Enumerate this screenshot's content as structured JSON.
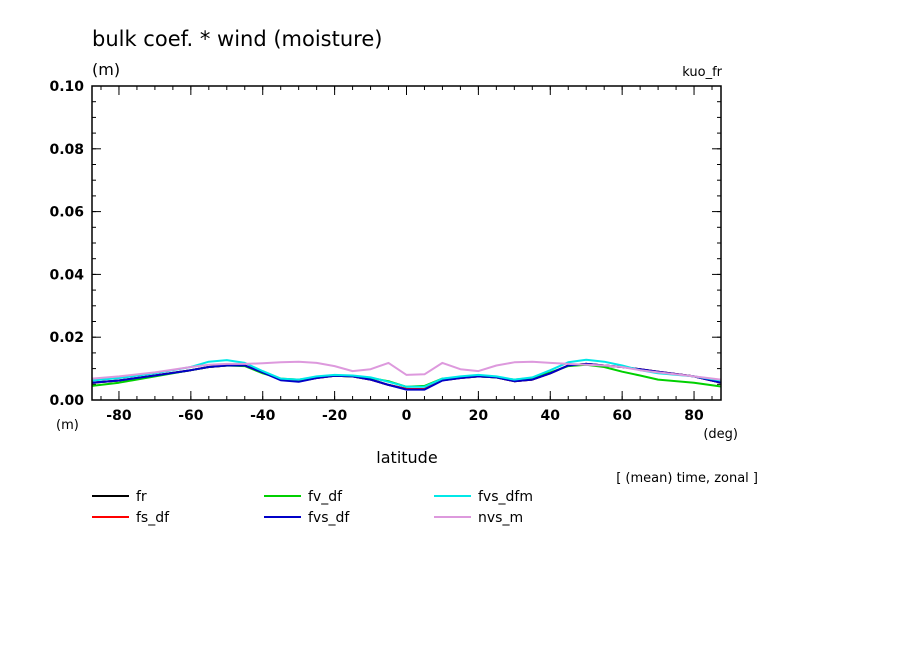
{
  "chart_data": {
    "type": "line",
    "title": "bulk coef. * wind (moisture)",
    "ylabel_unit": "(m)",
    "xlabel_unit": "(m)",
    "x_axis_unit": "(deg)",
    "xlabel": "latitude",
    "annotation_right": "kuo_fr",
    "annotation_note": "[ (mean) time, zonal ]",
    "xlim": [
      -87.5,
      87.5
    ],
    "ylim": [
      0,
      0.1
    ],
    "xticks": [
      -80,
      -60,
      -40,
      -20,
      0,
      20,
      40,
      60,
      80
    ],
    "xtick_labels": [
      "-80",
      "-60",
      "-40",
      "-20",
      "0",
      "20",
      "40",
      "60",
      "80"
    ],
    "yticks": [
      0,
      0.02,
      0.04,
      0.06,
      0.08,
      0.1
    ],
    "ytick_labels": [
      "0.00",
      "0.02",
      "0.04",
      "0.06",
      "0.08",
      "0.10"
    ],
    "x": [
      -87.5,
      -80,
      -70,
      -60,
      -55,
      -50,
      -45,
      -40,
      -35,
      -30,
      -25,
      -20,
      -15,
      -10,
      -5,
      0,
      5,
      10,
      15,
      20,
      25,
      30,
      35,
      40,
      45,
      50,
      55,
      60,
      65,
      70,
      80,
      87.5
    ],
    "series": [
      {
        "name": "fr",
        "color": "#000000",
        "values": [
          0.0055,
          0.0062,
          0.0078,
          0.0095,
          0.0105,
          0.011,
          0.011,
          0.0088,
          0.0065,
          0.006,
          0.007,
          0.0077,
          0.0075,
          0.0065,
          0.0048,
          0.0035,
          0.0035,
          0.0063,
          0.007,
          0.0075,
          0.0072,
          0.006,
          0.0065,
          0.0085,
          0.011,
          0.0115,
          0.011,
          0.0105,
          0.0098,
          0.009,
          0.0075,
          0.0055
        ]
      },
      {
        "name": "fs_df",
        "color": "#ff0000",
        "values": [
          0.0055,
          0.0062,
          0.0078,
          0.0095,
          0.0105,
          0.011,
          0.011,
          0.0088,
          0.0065,
          0.006,
          0.007,
          0.0077,
          0.0075,
          0.0065,
          0.0048,
          0.0035,
          0.0035,
          0.0063,
          0.007,
          0.0075,
          0.0072,
          0.006,
          0.0065,
          0.0085,
          0.011,
          0.0115,
          0.011,
          0.0105,
          0.0098,
          0.009,
          0.0075,
          0.0055
        ]
      },
      {
        "name": "fv_df",
        "color": "#00d000",
        "values": [
          0.0045,
          0.0055,
          0.0075,
          0.0095,
          0.0105,
          0.011,
          0.0108,
          0.0085,
          0.0068,
          0.0065,
          0.0072,
          0.0077,
          0.0075,
          0.007,
          0.006,
          0.0042,
          0.0045,
          0.0068,
          0.0072,
          0.0075,
          0.0072,
          0.0065,
          0.007,
          0.0088,
          0.0108,
          0.0112,
          0.0105,
          0.009,
          0.0078,
          0.0065,
          0.0055,
          0.0043
        ]
      },
      {
        "name": "fvs_df",
        "color": "#0000c8",
        "values": [
          0.0055,
          0.0062,
          0.0078,
          0.0095,
          0.0105,
          0.011,
          0.011,
          0.0088,
          0.0063,
          0.0058,
          0.007,
          0.0077,
          0.0075,
          0.0065,
          0.0048,
          0.0033,
          0.0033,
          0.0062,
          0.007,
          0.0075,
          0.0072,
          0.006,
          0.0065,
          0.0085,
          0.011,
          0.0115,
          0.011,
          0.0105,
          0.0098,
          0.009,
          0.0075,
          0.0055
        ]
      },
      {
        "name": "fvs_dfm",
        "color": "#00e8e8",
        "values": [
          0.0062,
          0.007,
          0.0085,
          0.0105,
          0.0122,
          0.0127,
          0.0118,
          0.0092,
          0.0068,
          0.0065,
          0.0075,
          0.008,
          0.0078,
          0.0072,
          0.0058,
          0.0042,
          0.0042,
          0.0068,
          0.0075,
          0.008,
          0.0075,
          0.0065,
          0.0072,
          0.0095,
          0.012,
          0.0128,
          0.0122,
          0.011,
          0.0095,
          0.0085,
          0.0075,
          0.0062
        ]
      },
      {
        "name": "nvs_m",
        "color": "#dd99dd",
        "values": [
          0.0068,
          0.0075,
          0.0088,
          0.0105,
          0.0112,
          0.0115,
          0.0115,
          0.0117,
          0.012,
          0.0122,
          0.0118,
          0.0108,
          0.0092,
          0.0098,
          0.0118,
          0.008,
          0.0082,
          0.0118,
          0.0098,
          0.0092,
          0.011,
          0.012,
          0.0122,
          0.0118,
          0.0115,
          0.0112,
          0.011,
          0.0105,
          0.0095,
          0.0088,
          0.0075,
          0.0065
        ]
      }
    ]
  }
}
